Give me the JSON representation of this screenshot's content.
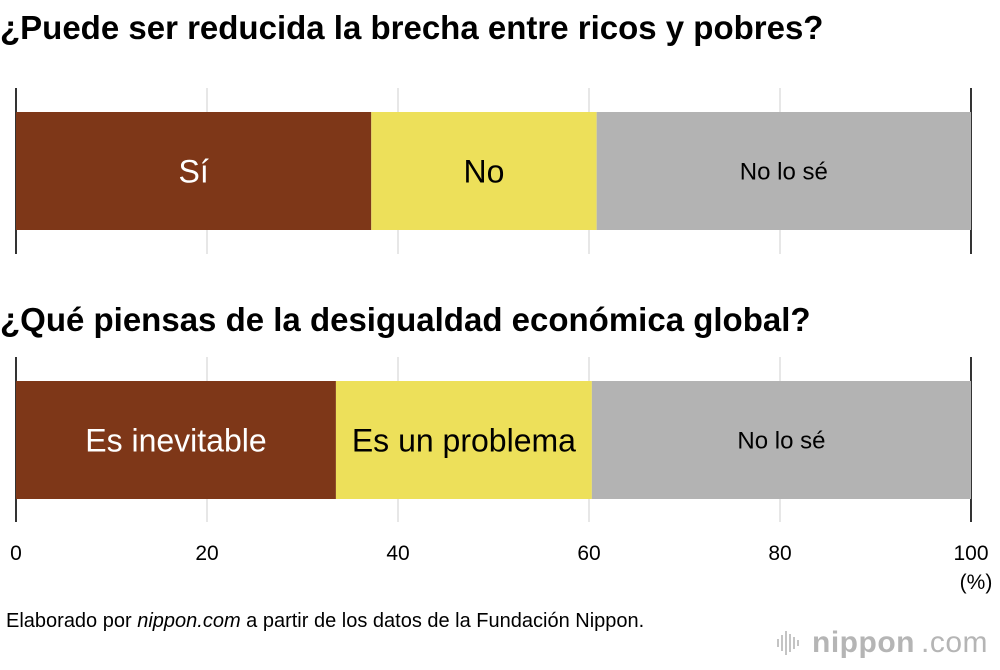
{
  "chart_data": [
    {
      "type": "bar",
      "orientation": "horizontal-stacked",
      "title": "¿Puede ser reducida la brecha entre ricos y pobres?",
      "segments": [
        {
          "label": "Sí",
          "value": 37.2,
          "color": "#7e3718",
          "text_color": "#ffffff"
        },
        {
          "label": "No",
          "value": 23.6,
          "color": "#ede05a",
          "text_color": "#000000"
        },
        {
          "label": "No lo sé",
          "value": 39.2,
          "color": "#b3b3b3",
          "text_color": "#000000"
        }
      ]
    },
    {
      "type": "bar",
      "orientation": "horizontal-stacked",
      "title": "¿Qué piensas de la desigualdad económica global?",
      "segments": [
        {
          "label": "Es inevitable",
          "value": 33.5,
          "color": "#7e3718",
          "text_color": "#ffffff"
        },
        {
          "label": "Es un problema",
          "value": 26.8,
          "color": "#ede05a",
          "text_color": "#000000"
        },
        {
          "label": "No lo sé",
          "value": 39.7,
          "color": "#b3b3b3",
          "text_color": "#000000"
        }
      ]
    }
  ],
  "axis": {
    "xlim": [
      0,
      100
    ],
    "ticks": [
      0,
      20,
      40,
      60,
      80,
      100
    ],
    "tick_labels": [
      "0",
      "20",
      "40",
      "60",
      "80",
      "100"
    ],
    "unit_label": "(%)",
    "grid": true
  },
  "footer": {
    "source_prefix": "Elaborado por ",
    "source_site": "nippon.com",
    "source_suffix": " a partir de los datos de la Fundación Nippon."
  },
  "brand": {
    "name": "nippon",
    "suffix": ".com",
    "icon": "sound-wave-icon"
  }
}
